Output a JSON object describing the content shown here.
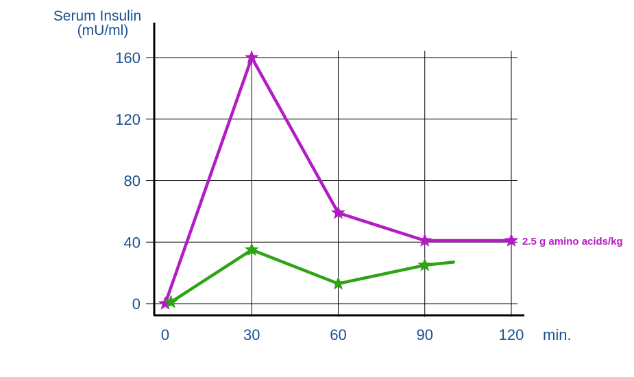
{
  "chart_data": {
    "type": "line",
    "ylabel_line1": "Serum Insulin",
    "ylabel_line2": "(mU/ml)",
    "xlabel": "min.",
    "x_ticks": [
      0,
      30,
      60,
      90,
      120
    ],
    "y_ticks": [
      0,
      40,
      80,
      120,
      160
    ],
    "xlim": [
      0,
      120
    ],
    "ylim": [
      0,
      160
    ],
    "grid": true,
    "series": [
      {
        "name": "2.5 g amino acids/kg",
        "color": "#b21cc4",
        "marker": "star",
        "points": [
          [
            0,
            0
          ],
          [
            30,
            160
          ],
          [
            60,
            59
          ],
          [
            90,
            41
          ],
          [
            120,
            41
          ]
        ]
      },
      {
        "color": "#2ea313",
        "marker": "star",
        "points": [
          [
            2,
            1
          ],
          [
            30,
            35
          ],
          [
            60,
            13
          ],
          [
            90,
            25
          ],
          [
            100,
            27
          ]
        ],
        "marker_indices": [
          0,
          1,
          2,
          3
        ]
      }
    ]
  }
}
